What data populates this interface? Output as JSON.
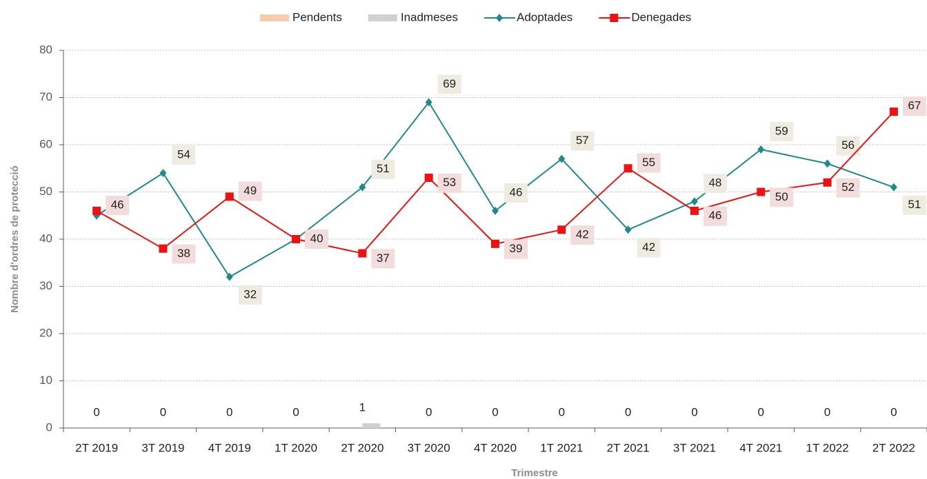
{
  "chart_data": {
    "type": "line",
    "x_label": "Trimestre",
    "y_label": "Nombre d'ordres de protecció",
    "categories": [
      "2T 2019",
      "3T 2019",
      "4T 2019",
      "1T 2020",
      "2T 2020",
      "3T 2020",
      "4T 2020",
      "1T 2021",
      "2T 2021",
      "3T 2021",
      "4T 2021",
      "1T 2022",
      "2T 2022"
    ],
    "series": [
      {
        "name": "Pendents",
        "kind": "bar",
        "color": "#f8cbad",
        "values": [
          0,
          0,
          0,
          0,
          0,
          0,
          0,
          0,
          0,
          0,
          0,
          0,
          0
        ]
      },
      {
        "name": "Inadmeses",
        "kind": "bar",
        "color": "#d0d0d0",
        "values": [
          0,
          0,
          0,
          0,
          1,
          0,
          0,
          0,
          0,
          0,
          0,
          0,
          0
        ],
        "show_labels": true
      },
      {
        "name": "Adoptades",
        "kind": "line",
        "marker": "diamond",
        "color": "#1f8a8a",
        "label_bg": "#eeebe0",
        "values": [
          45,
          54,
          32,
          40,
          51,
          69,
          46,
          57,
          42,
          48,
          59,
          56,
          51
        ],
        "value_labels": [
          null,
          "54",
          "32",
          null,
          "51",
          "69",
          "46",
          "57",
          "42",
          "48",
          "59",
          "56",
          "51"
        ]
      },
      {
        "name": "Denegades",
        "kind": "line",
        "marker": "square",
        "color": "#ee1111",
        "label_bg": "#f2dcdc",
        "values": [
          46,
          38,
          49,
          40,
          37,
          53,
          39,
          42,
          55,
          46,
          50,
          52,
          67
        ],
        "show_labels": true
      }
    ],
    "ylim": [
      0,
      80
    ],
    "yticks": [
      0,
      10,
      20,
      30,
      40,
      50,
      60,
      70,
      80
    ],
    "grid": true,
    "legend": "top"
  }
}
